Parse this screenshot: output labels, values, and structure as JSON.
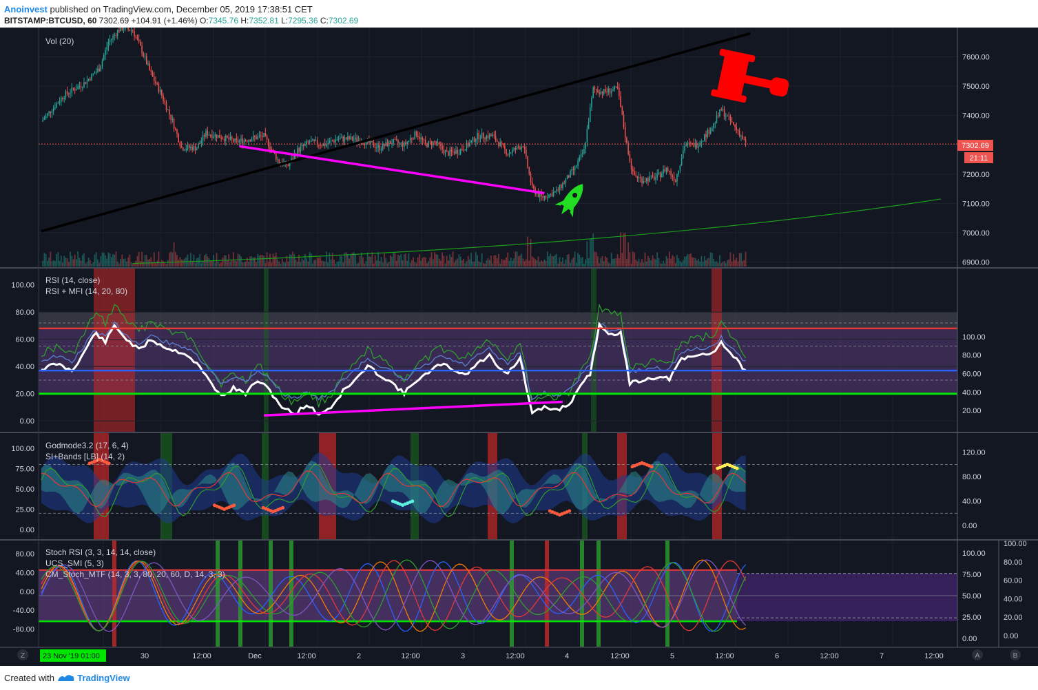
{
  "header": {
    "author": "Anoinvest",
    "published": "published on TradingView.com, December 05, 2019 17:38:51 CET",
    "symbol": "BITSTAMP:BTCUSD, 60",
    "last": "7302.69",
    "change": "+104.91 (+1.46%)",
    "o_label": "O:",
    "o_value": "7345.76",
    "h_label": "H:",
    "h_value": "7352.81",
    "l_label": "L:",
    "l_value": "7295.36",
    "c_label": "C:",
    "c_value": "7302.69"
  },
  "footer": {
    "created_with": "Created with",
    "brand": "TradingView"
  },
  "colors": {
    "bg": "#131722",
    "grid": "#2a2e39",
    "up": "#26a69a",
    "down": "#ef5350",
    "rsi_upper": "#e53935",
    "rsi_lower": "#00e600",
    "rsi_mid": "#2962ff",
    "magenta": "#ff00ff",
    "price_tag": "#ef5350"
  },
  "icons": [
    "rocket-icon",
    "gavel-icon",
    "tradingview-logo-icon"
  ],
  "price_panel": {
    "indicator_label": "Vol (20)",
    "price_tag": "7302.69",
    "countdown_tag": "21:11",
    "axis_ticks": [
      "7600.00",
      "7500.00",
      "7400.00",
      "7300.00",
      "7200.00",
      "7100.00",
      "7000.00",
      "6900.00"
    ]
  },
  "rsi_panel": {
    "labels": [
      "RSI (14, close)",
      "RSI + MFI (14, 20, 80)"
    ],
    "left_ticks": [
      "100.00",
      "80.00",
      "60.00",
      "40.00",
      "20.00",
      "0.00"
    ],
    "right_ticks": [
      "100.00",
      "80.00",
      "60.00",
      "40.00",
      "20.00"
    ]
  },
  "godmode_panel": {
    "labels": [
      "Godmode3.2 (17, 6, 4)",
      "SI+Bands [LB] (14, 2)"
    ],
    "left_ticks": [
      "100.00",
      "75.00",
      "50.00",
      "25.00",
      "0.00"
    ],
    "right_ticks": [
      "120.00",
      "80.00",
      "40.00",
      "0.00"
    ]
  },
  "stoch_panel": {
    "labels": [
      "Stoch RSI (3, 3, 14, 14, close)",
      "UCS_SMI (5, 3)",
      "CM_Stoch_MTF (14, 3, 3, 80, 20, 60, D, 14, 3, 3)"
    ],
    "left_ticks": [
      "80.00",
      "40.00",
      "0.00",
      "-40.00",
      "-80.00"
    ],
    "right_ticks": [
      "100.00",
      "75.00",
      "50.00",
      "25.00",
      "0.00"
    ],
    "far_right_ticks": [
      "100.00",
      "80.00",
      "60.00",
      "40.00",
      "20.00",
      "0.00"
    ]
  },
  "time_axis": {
    "first_label": "23 Nov '19   01:00",
    "ticks": [
      "30",
      "12:00",
      "Dec",
      "12:00",
      "2",
      "12:00",
      "3",
      "12:00",
      "4",
      "12:00",
      "5",
      "12:00",
      "6",
      "12:00",
      "7",
      "12:00"
    ],
    "buttons": [
      "Z",
      "A",
      "B"
    ]
  },
  "chart_data": {
    "type": "candlestick",
    "symbol": "BITSTAMP:BTCUSD",
    "interval": "60",
    "price_ylim": [
      6880,
      7700
    ],
    "x_categories": [
      "30",
      "12:00",
      "Dec",
      "12:00",
      "2",
      "12:00",
      "3",
      "12:00",
      "4",
      "12:00",
      "5",
      "12:00",
      "6",
      "12:00",
      "7",
      "12:00"
    ],
    "price_path": [
      [
        0,
        7380
      ],
      [
        15,
        7470
      ],
      [
        28,
        7510
      ],
      [
        38,
        7560
      ],
      [
        44,
        7650
      ],
      [
        52,
        7700
      ],
      [
        60,
        7690
      ],
      [
        66,
        7620
      ],
      [
        72,
        7540
      ],
      [
        78,
        7480
      ],
      [
        86,
        7380
      ],
      [
        92,
        7290
      ],
      [
        102,
        7290
      ],
      [
        108,
        7340
      ],
      [
        116,
        7330
      ],
      [
        128,
        7310
      ],
      [
        136,
        7320
      ],
      [
        146,
        7330
      ],
      [
        156,
        7240
      ],
      [
        162,
        7230
      ],
      [
        168,
        7280
      ],
      [
        176,
        7310
      ],
      [
        186,
        7300
      ],
      [
        194,
        7320
      ],
      [
        204,
        7320
      ],
      [
        212,
        7310
      ],
      [
        222,
        7290
      ],
      [
        230,
        7310
      ],
      [
        238,
        7300
      ],
      [
        246,
        7340
      ],
      [
        252,
        7300
      ],
      [
        258,
        7310
      ],
      [
        266,
        7270
      ],
      [
        274,
        7280
      ],
      [
        280,
        7300
      ],
      [
        286,
        7330
      ],
      [
        296,
        7330
      ],
      [
        306,
        7270
      ],
      [
        316,
        7300
      ],
      [
        322,
        7150
      ],
      [
        328,
        7120
      ],
      [
        338,
        7140
      ],
      [
        344,
        7180
      ],
      [
        350,
        7220
      ],
      [
        356,
        7280
      ],
      [
        362,
        7490
      ],
      [
        368,
        7480
      ],
      [
        378,
        7490
      ],
      [
        384,
        7300
      ],
      [
        388,
        7200
      ],
      [
        394,
        7180
      ],
      [
        404,
        7190
      ],
      [
        410,
        7220
      ],
      [
        416,
        7180
      ],
      [
        422,
        7300
      ],
      [
        430,
        7300
      ],
      [
        440,
        7360
      ],
      [
        446,
        7420
      ],
      [
        452,
        7380
      ],
      [
        458,
        7340
      ],
      [
        462,
        7302.69
      ]
    ],
    "last_price": 7302.69,
    "trendlines": [
      {
        "color": "black",
        "from": [
          0,
          7005
        ],
        "to": [
          465,
          7680
        ]
      },
      {
        "color": "magenta",
        "from": [
          130,
          7295
        ],
        "to": [
          330,
          7135
        ]
      },
      {
        "color": "green",
        "from": [
          60,
          6895
        ],
        "to": [
          590,
          7115
        ]
      }
    ],
    "rsi": [
      [
        0,
        38
      ],
      [
        10,
        42
      ],
      [
        20,
        37
      ],
      [
        28,
        50
      ],
      [
        35,
        65
      ],
      [
        42,
        58
      ],
      [
        48,
        70
      ],
      [
        56,
        60
      ],
      [
        64,
        52
      ],
      [
        72,
        60
      ],
      [
        78,
        56
      ],
      [
        86,
        52
      ],
      [
        94,
        50
      ],
      [
        102,
        42
      ],
      [
        110,
        30
      ],
      [
        118,
        18
      ],
      [
        126,
        24
      ],
      [
        134,
        20
      ],
      [
        142,
        30
      ],
      [
        150,
        22
      ],
      [
        158,
        10
      ],
      [
        166,
        5
      ],
      [
        174,
        12
      ],
      [
        182,
        5
      ],
      [
        190,
        10
      ],
      [
        198,
        22
      ],
      [
        206,
        30
      ],
      [
        214,
        40
      ],
      [
        222,
        34
      ],
      [
        230,
        28
      ],
      [
        238,
        20
      ],
      [
        246,
        30
      ],
      [
        254,
        35
      ],
      [
        262,
        42
      ],
      [
        270,
        38
      ],
      [
        278,
        34
      ],
      [
        286,
        42
      ],
      [
        294,
        48
      ],
      [
        300,
        40
      ],
      [
        306,
        35
      ],
      [
        314,
        46
      ],
      [
        322,
        5
      ],
      [
        330,
        10
      ],
      [
        338,
        8
      ],
      [
        346,
        12
      ],
      [
        352,
        22
      ],
      [
        360,
        35
      ],
      [
        366,
        70
      ],
      [
        372,
        65
      ],
      [
        380,
        64
      ],
      [
        386,
        28
      ],
      [
        394,
        30
      ],
      [
        402,
        32
      ],
      [
        412,
        31
      ],
      [
        420,
        45
      ],
      [
        430,
        48
      ],
      [
        440,
        50
      ],
      [
        446,
        58
      ],
      [
        452,
        50
      ],
      [
        462,
        37
      ]
    ],
    "rsi_levels": {
      "upper": 68,
      "lower": 20,
      "mid": 37
    },
    "rsi_ylim": [
      -8,
      112
    ]
  }
}
